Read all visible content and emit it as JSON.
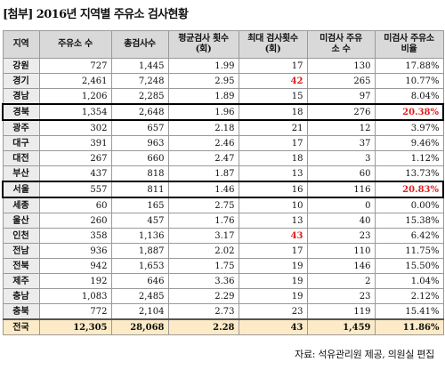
{
  "title": "[첨부] 2016년 지역별 주유소 검사현황",
  "columns": [
    "지역",
    "주유소 수",
    "총검사수",
    "평균검사 횟수(회)",
    "최대 검사횟수(회)",
    "미검사 주유소 수",
    "미검사 주유소 비율"
  ],
  "rows": [
    {
      "region": "강원",
      "stations": "727",
      "total": "1,445",
      "avg": "1.99",
      "max": "17",
      "unchecked": "130",
      "ratio": "17.88%"
    },
    {
      "region": "경기",
      "stations": "2,461",
      "total": "7,248",
      "avg": "2.95",
      "max": "42",
      "unchecked": "265",
      "ratio": "10.77%"
    },
    {
      "region": "경남",
      "stations": "1,206",
      "total": "2,285",
      "avg": "1.89",
      "max": "15",
      "unchecked": "97",
      "ratio": "8.04%"
    },
    {
      "region": "경북",
      "stations": "1,354",
      "total": "2,648",
      "avg": "1.96",
      "max": "18",
      "unchecked": "276",
      "ratio": "20.38%"
    },
    {
      "region": "광주",
      "stations": "302",
      "total": "657",
      "avg": "2.18",
      "max": "21",
      "unchecked": "12",
      "ratio": "3.97%"
    },
    {
      "region": "대구",
      "stations": "391",
      "total": "963",
      "avg": "2.46",
      "max": "17",
      "unchecked": "37",
      "ratio": "9.46%"
    },
    {
      "region": "대전",
      "stations": "267",
      "total": "660",
      "avg": "2.47",
      "max": "18",
      "unchecked": "3",
      "ratio": "1.12%"
    },
    {
      "region": "부산",
      "stations": "437",
      "total": "818",
      "avg": "1.87",
      "max": "13",
      "unchecked": "60",
      "ratio": "13.73%"
    },
    {
      "region": "서울",
      "stations": "557",
      "total": "811",
      "avg": "1.46",
      "max": "16",
      "unchecked": "116",
      "ratio": "20.83%"
    },
    {
      "region": "세종",
      "stations": "60",
      "total": "165",
      "avg": "2.75",
      "max": "10",
      "unchecked": "0",
      "ratio": "0.00%"
    },
    {
      "region": "울산",
      "stations": "260",
      "total": "457",
      "avg": "1.76",
      "max": "13",
      "unchecked": "40",
      "ratio": "15.38%"
    },
    {
      "region": "인천",
      "stations": "358",
      "total": "1,136",
      "avg": "3.17",
      "max": "43",
      "unchecked": "23",
      "ratio": "6.42%"
    },
    {
      "region": "전남",
      "stations": "936",
      "total": "1,887",
      "avg": "2.02",
      "max": "17",
      "unchecked": "110",
      "ratio": "11.75%"
    },
    {
      "region": "전북",
      "stations": "942",
      "total": "1,653",
      "avg": "1.75",
      "max": "19",
      "unchecked": "146",
      "ratio": "15.50%"
    },
    {
      "region": "제주",
      "stations": "192",
      "total": "646",
      "avg": "3.36",
      "max": "19",
      "unchecked": "2",
      "ratio": "1.04%"
    },
    {
      "region": "충남",
      "stations": "1,083",
      "total": "2,485",
      "avg": "2.29",
      "max": "19",
      "unchecked": "23",
      "ratio": "2.12%"
    },
    {
      "region": "충북",
      "stations": "772",
      "total": "2,104",
      "avg": "2.73",
      "max": "23",
      "unchecked": "119",
      "ratio": "15.41%"
    }
  ],
  "total": {
    "region": "전국",
    "stations": "12,305",
    "total": "28,068",
    "avg": "2.28",
    "max": "43",
    "unchecked": "1,459",
    "ratio": "11.86%"
  },
  "highlight_rows": [
    "경북",
    "서울"
  ],
  "red_max_regions": [
    "경기",
    "인천"
  ],
  "red_ratio_regions": [
    "경북",
    "서울"
  ],
  "colors": {
    "header_bg": "#d9d9d9",
    "region_bg": "#ececec",
    "total_bg": "#fdebc8",
    "emphasis_red": "#e02020"
  },
  "source": "자료: 석유관리원 제공, 의원실 편집"
}
